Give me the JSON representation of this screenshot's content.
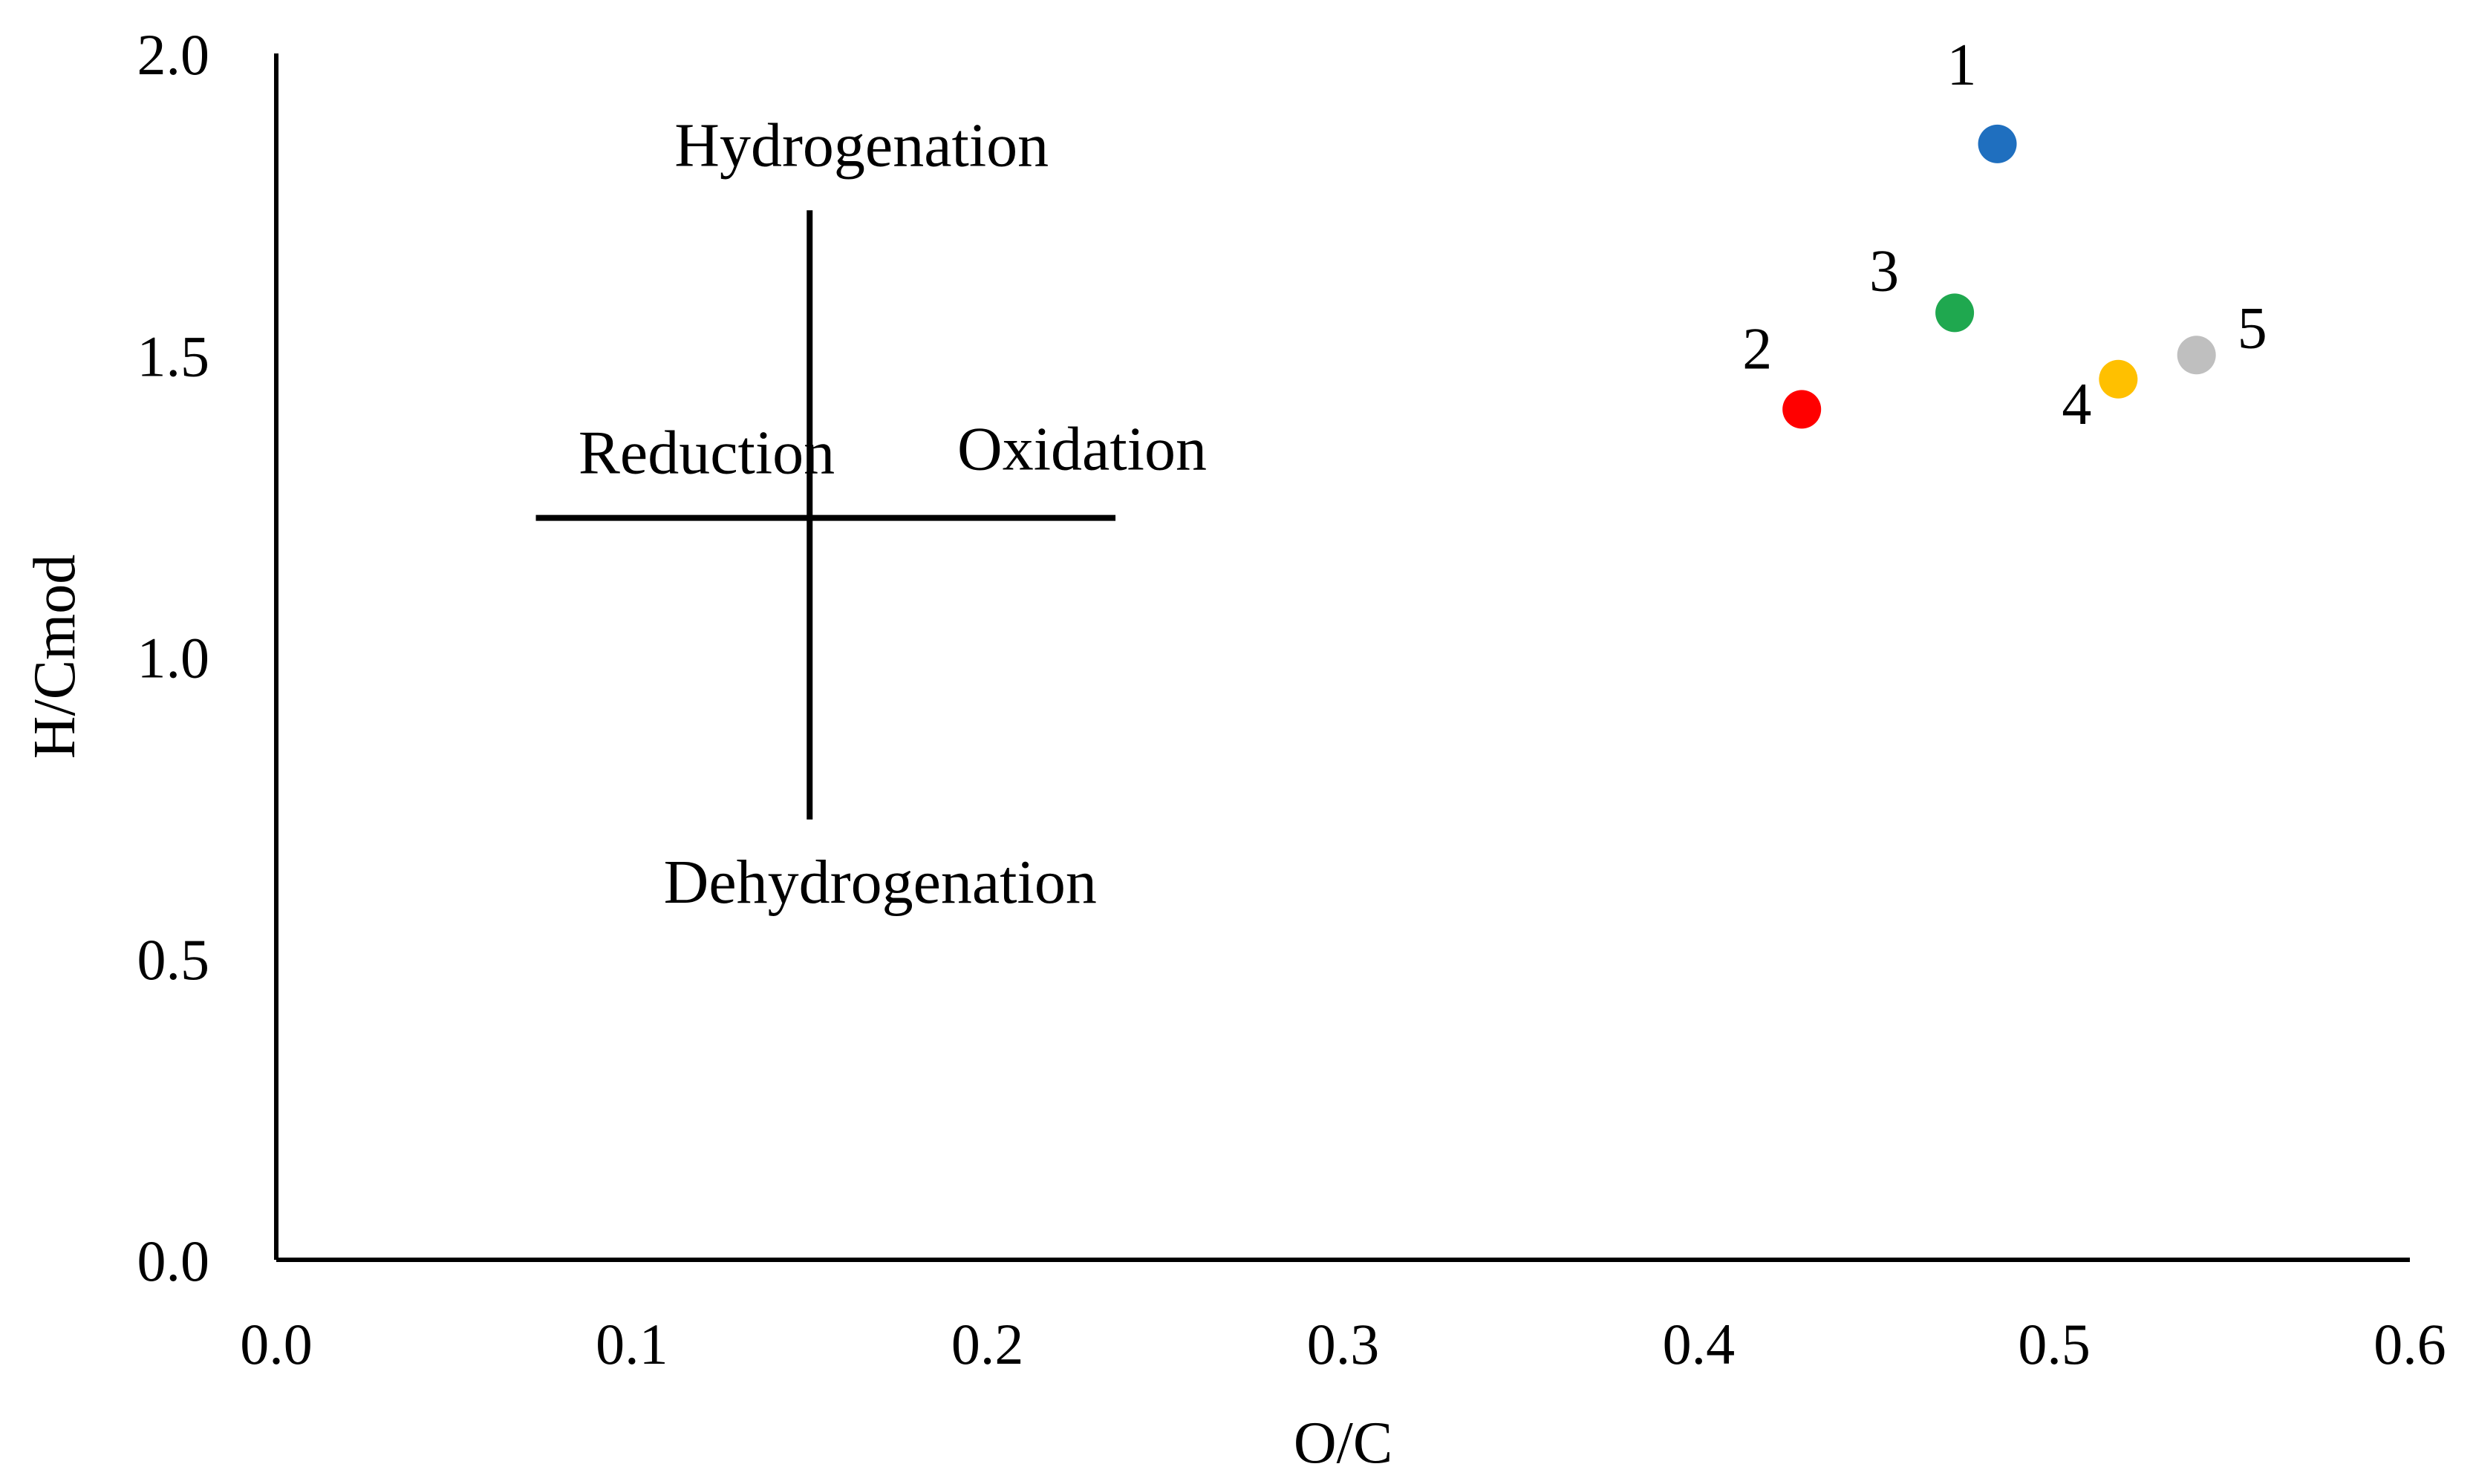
{
  "chart_data": {
    "type": "scatter",
    "title": "",
    "xlabel": "O/C",
    "ylabel": "H/Cmod",
    "xlim": [
      0.0,
      0.6
    ],
    "ylim": [
      0.0,
      2.0
    ],
    "xticks": [
      "0.0",
      "0.1",
      "0.2",
      "0.3",
      "0.4",
      "0.5",
      "0.6"
    ],
    "yticks": [
      "0.0",
      "0.5",
      "1.0",
      "1.5",
      "2.0"
    ],
    "grid": false,
    "legend": "none",
    "points": [
      {
        "label": "1",
        "x": 0.484,
        "y": 1.85,
        "color": "#1F6FBF"
      },
      {
        "label": "2",
        "x": 0.429,
        "y": 1.41,
        "color": "#FF0000"
      },
      {
        "label": "3",
        "x": 0.472,
        "y": 1.57,
        "color": "#1FA84F"
      },
      {
        "label": "4",
        "x": 0.518,
        "y": 1.46,
        "color": "#FFC000"
      },
      {
        "label": "5",
        "x": 0.54,
        "y": 1.5,
        "color": "#BFBFBF"
      }
    ],
    "annotations": {
      "up": "Hydrogenation",
      "down": "Dehydrogenation",
      "left": "Reduction",
      "right": "Oxidation"
    },
    "crosshair": {
      "center_x": 0.15,
      "center_y": 1.23,
      "x_range": [
        0.073,
        0.236
      ],
      "y_range": [
        0.73,
        1.74
      ]
    }
  }
}
